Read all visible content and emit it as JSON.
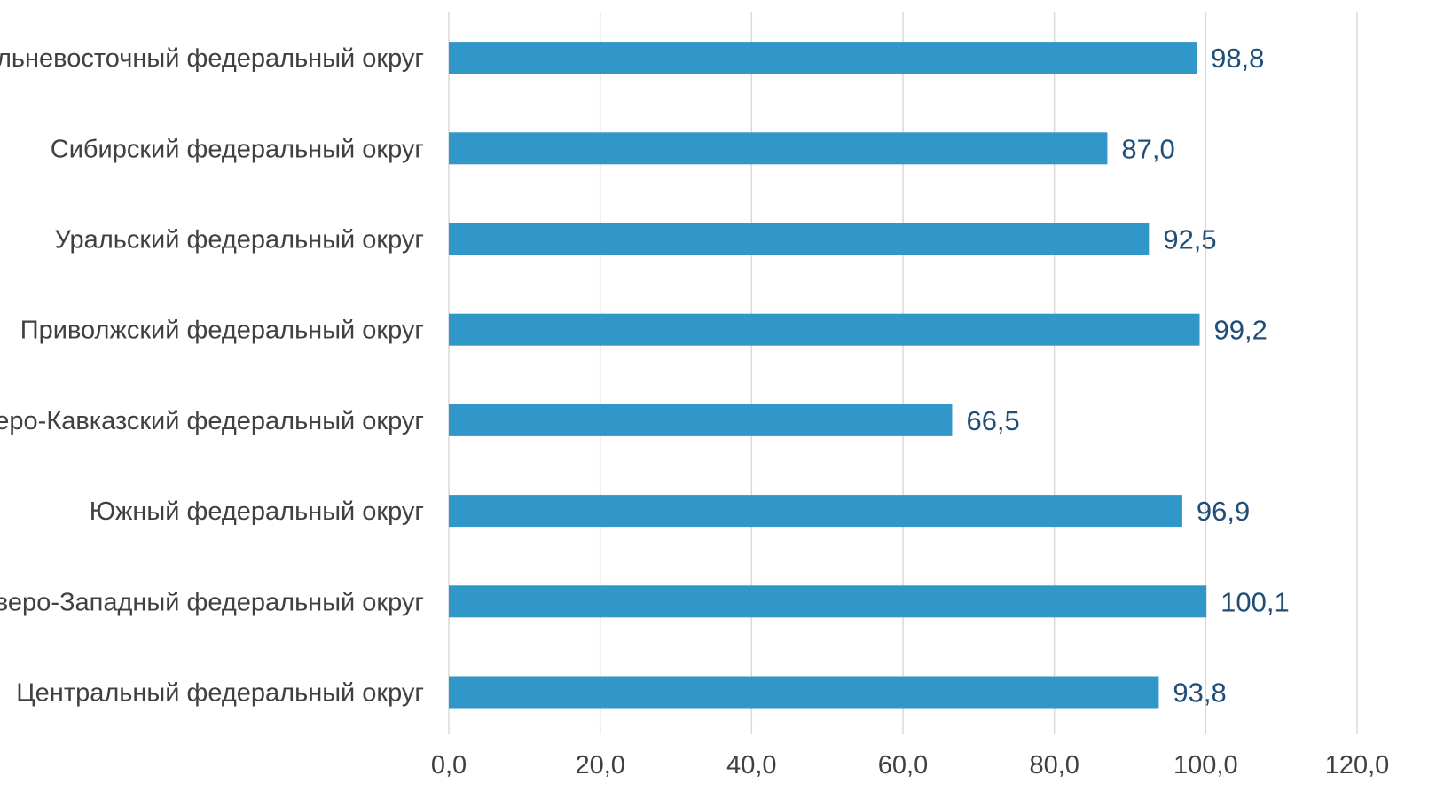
{
  "chart_data": {
    "type": "bar",
    "orientation": "horizontal",
    "categories": [
      "Дальневосточный федеральный округ",
      "Сибирский федеральный округ",
      "Уральский федеральный округ",
      "Приволжский федеральный округ",
      "Северо-Кавказский федеральный округ",
      "Южный федеральный округ",
      "Северо-Западный федеральный округ",
      "Центральный федеральный округ"
    ],
    "values": [
      98.8,
      87.0,
      92.5,
      99.2,
      66.5,
      96.9,
      100.1,
      93.8
    ],
    "value_labels": [
      "98,8",
      "87,0",
      "92,5",
      "99,2",
      "66,5",
      "96,9",
      "100,1",
      "93,8"
    ],
    "x_ticks": [
      0,
      20,
      40,
      60,
      80,
      100,
      120
    ],
    "x_tick_labels": [
      "0,0",
      "20,0",
      "40,0",
      "60,0",
      "80,0",
      "100,0",
      "120,0"
    ],
    "xlim": [
      0,
      120
    ],
    "grid": true,
    "bar_color": "#3196c8",
    "label_color": "#1f4e79",
    "title": "",
    "xlabel": "",
    "ylabel": ""
  }
}
